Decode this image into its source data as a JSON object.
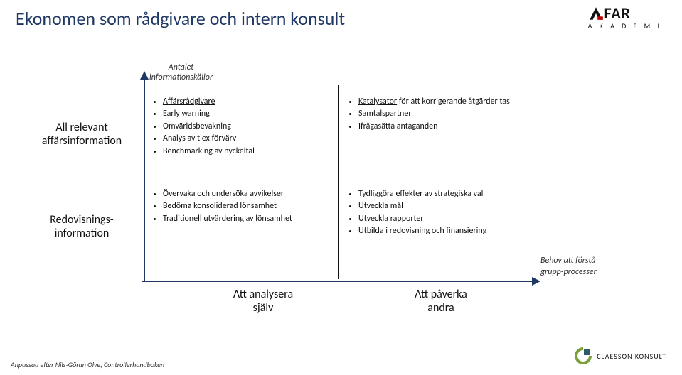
{
  "colors": {
    "accent": "#203864",
    "text": "#111",
    "bg": "#ffffff",
    "sub": "#333"
  },
  "title": "Ekonomen som rådgivare och intern konsult",
  "logo_far": {
    "top": "FAR",
    "bottom": "A K A D E M I"
  },
  "logo_ck": {
    "text": "CLAESSON KONSULT"
  },
  "axis_label": {
    "l1": "Antalet",
    "l2": "informationskällor"
  },
  "row_labels": {
    "top_l1": "All relevant",
    "top_l2": "affärsinformation",
    "bot_l1": "Redovisnings-",
    "bot_l2": "information"
  },
  "x_labels": {
    "left_l1": "Att analysera",
    "left_l2": "själv",
    "right_l1": "Att påverka",
    "right_l2": "andra"
  },
  "side_note": {
    "l1": "Behov att förstå",
    "l2": "grupp-processer"
  },
  "q1": {
    "items": [
      {
        "u": "Affärsrådgivare",
        "rest": ""
      },
      {
        "u": "",
        "rest": "Early warning"
      },
      {
        "u": "",
        "rest": "Omvärldsbevakning"
      },
      {
        "u": "",
        "rest": "Analys av t ex förvärv"
      },
      {
        "u": "",
        "rest": "Benchmarking av nyckeltal"
      }
    ]
  },
  "q2": {
    "items": [
      {
        "u": "Katalysator",
        "rest": " för att korrigerande åtgärder tas"
      },
      {
        "u": "",
        "rest": "Samtalspartner"
      },
      {
        "u": "",
        "rest": "Ifrågasätta antaganden"
      }
    ]
  },
  "q3": {
    "items": [
      {
        "u": "",
        "rest": "Övervaka och undersöka avvikelser"
      },
      {
        "u": "",
        "rest": "Bedöma konsoliderad lönsamhet"
      },
      {
        "u": "",
        "rest": "Traditionell utvärdering av lönsamhet"
      }
    ]
  },
  "q4": {
    "items": [
      {
        "u": "Tydliggöra",
        "rest": " effekter av strategiska val"
      },
      {
        "u": "",
        "rest": "Utveckla mål"
      },
      {
        "u": "",
        "rest": "Utveckla rapporter"
      },
      {
        "u": "",
        "rest": "Utbilda i redovisning och finansiering"
      }
    ]
  },
  "footer": "Anpassad efter Nils-Göran Olve, Controllerhandboken"
}
